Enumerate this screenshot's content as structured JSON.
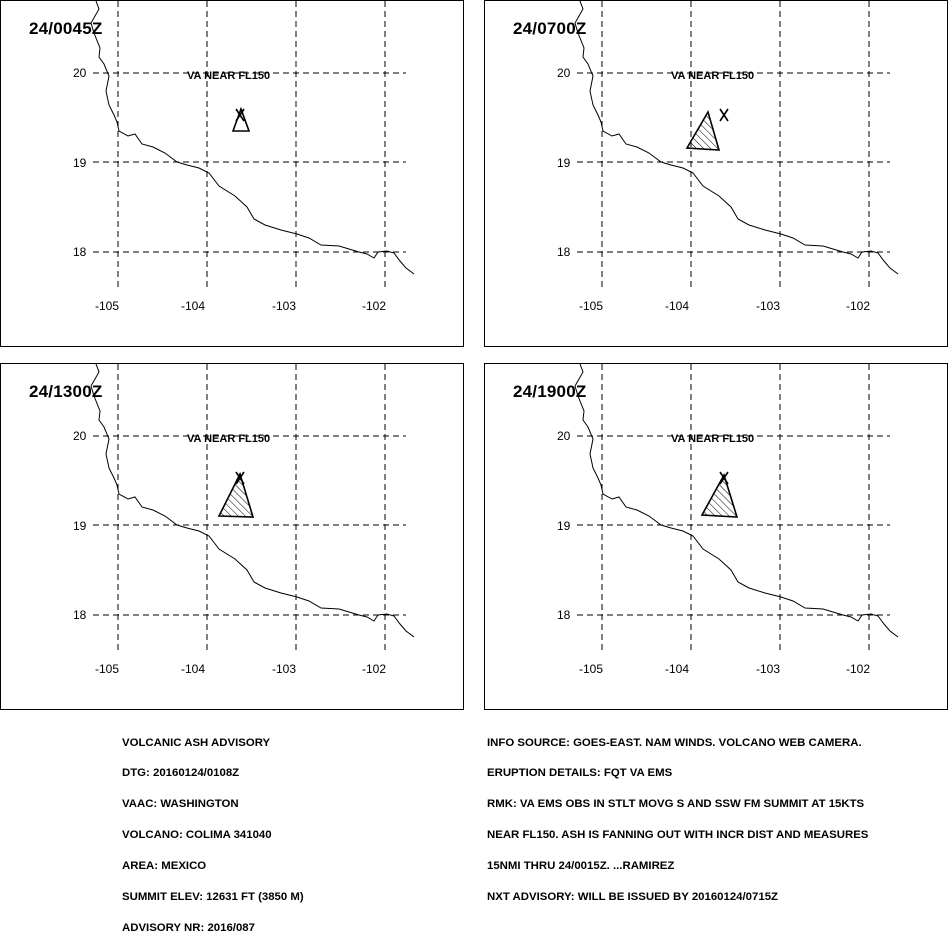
{
  "panels": [
    {
      "time": "24/0045Z",
      "va_label": "VA NEAR FL150"
    },
    {
      "time": "24/0700Z",
      "va_label": "VA NEAR FL150"
    },
    {
      "time": "24/1300Z",
      "va_label": "VA NEAR FL150"
    },
    {
      "time": "24/1900Z",
      "va_label": "VA NEAR FL150"
    }
  ],
  "lat_labels": [
    "20",
    "19",
    "18"
  ],
  "lon_labels": [
    "-105",
    "-104",
    "-103",
    "-102"
  ],
  "advisory_left": [
    "VOLCANIC ASH ADVISORY",
    "DTG: 20160124/0108Z",
    "VAAC: WASHINGTON",
    "VOLCANO: COLIMA 341040",
    "AREA: MEXICO",
    "SUMMIT ELEV: 12631 FT (3850 M)",
    "ADVISORY NR: 2016/087"
  ],
  "advisory_right": [
    "INFO SOURCE: GOES-EAST. NAM WINDS. VOLCANO WEB CAMERA.",
    "ERUPTION DETAILS: FQT VA EMS",
    "RMK: VA EMS OBS IN STLT MOVG S AND SSW FM SUMMIT AT 15KTS",
    "NEAR FL150. ASH IS FANNING OUT WITH INCR DIST AND MEASURES",
    "15NMI THRU 24/0015Z. ...RAMIREZ",
    "NXT ADVISORY: WILL BE ISSUED BY 20160124/0715Z"
  ],
  "icons": {
    "volcano": "volcano-x-icon",
    "ash_area": "ash-polygon-hatched"
  }
}
